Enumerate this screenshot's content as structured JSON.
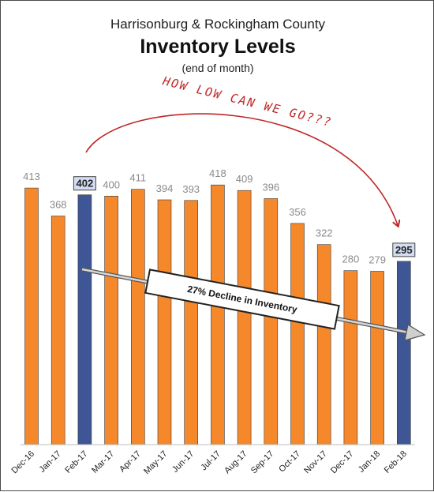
{
  "header": {
    "subtitle": "Harrisonburg & Rockingham County",
    "title": "Inventory Levels",
    "note": "(end of month)"
  },
  "annotations": {
    "handwritten": "HOW LOW CAN WE GO???",
    "decline_banner": "27% Decline in Inventory"
  },
  "colors": {
    "bar": "#F5882B",
    "bar_highlight": "#3F5696",
    "highlight_label_bg": "#D3DCF1",
    "handwriting": "#C0282A",
    "trend_arrow": "#8A8A8A"
  },
  "chart_data": {
    "type": "bar",
    "title": "Inventory Levels",
    "subtitle": "Harrisonburg & Rockingham County",
    "categories": [
      "Dec-16",
      "Jan-17",
      "Feb-17",
      "Mar-17",
      "Apr-17",
      "May-17",
      "Jun-17",
      "Jul-17",
      "Aug-17",
      "Sep-17",
      "Oct-17",
      "Nov-17",
      "Dec-17",
      "Jan-18",
      "Feb-18"
    ],
    "values": [
      413,
      368,
      402,
      400,
      411,
      394,
      393,
      418,
      409,
      396,
      356,
      322,
      280,
      279,
      295
    ],
    "highlighted": [
      "Feb-17",
      "Feb-18"
    ],
    "ylim": [
      0,
      500
    ],
    "grid": false,
    "xlabel": "",
    "ylabel": ""
  }
}
